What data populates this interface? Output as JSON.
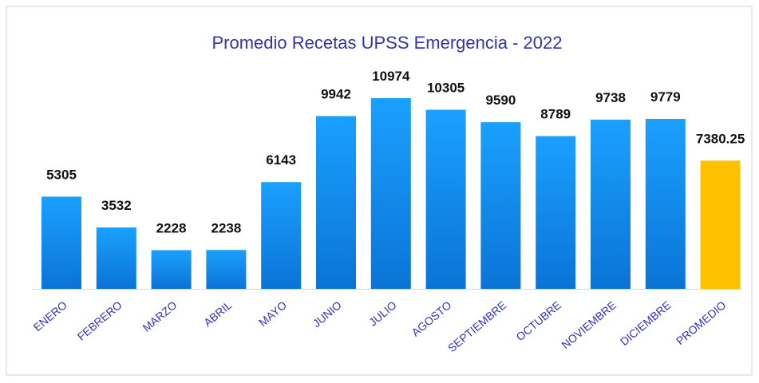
{
  "chart_data": {
    "type": "bar",
    "title": "Promedio Recetas UPSS Emergencia - 2022",
    "categories": [
      "ENERO",
      "FEBRERO",
      "MARZO",
      "ABRIL",
      "MAYO",
      "JUNIO",
      "JULIO",
      "AGOSTO",
      "SEPTIEMBRE",
      "OCTUBRE",
      "NOVIEMBRE",
      "DICIEMBRE",
      "PROMEDIO"
    ],
    "values": [
      5305,
      3532,
      2228,
      2238,
      6143,
      9942,
      10974,
      10305,
      9590,
      8789,
      9738,
      9779,
      7380.25
    ],
    "colors": [
      "#1890f5",
      "#1890f5",
      "#1890f5",
      "#1890f5",
      "#1890f5",
      "#1890f5",
      "#1890f5",
      "#1890f5",
      "#1890f5",
      "#1890f5",
      "#1890f5",
      "#1890f5",
      "#ffc000"
    ]
  }
}
